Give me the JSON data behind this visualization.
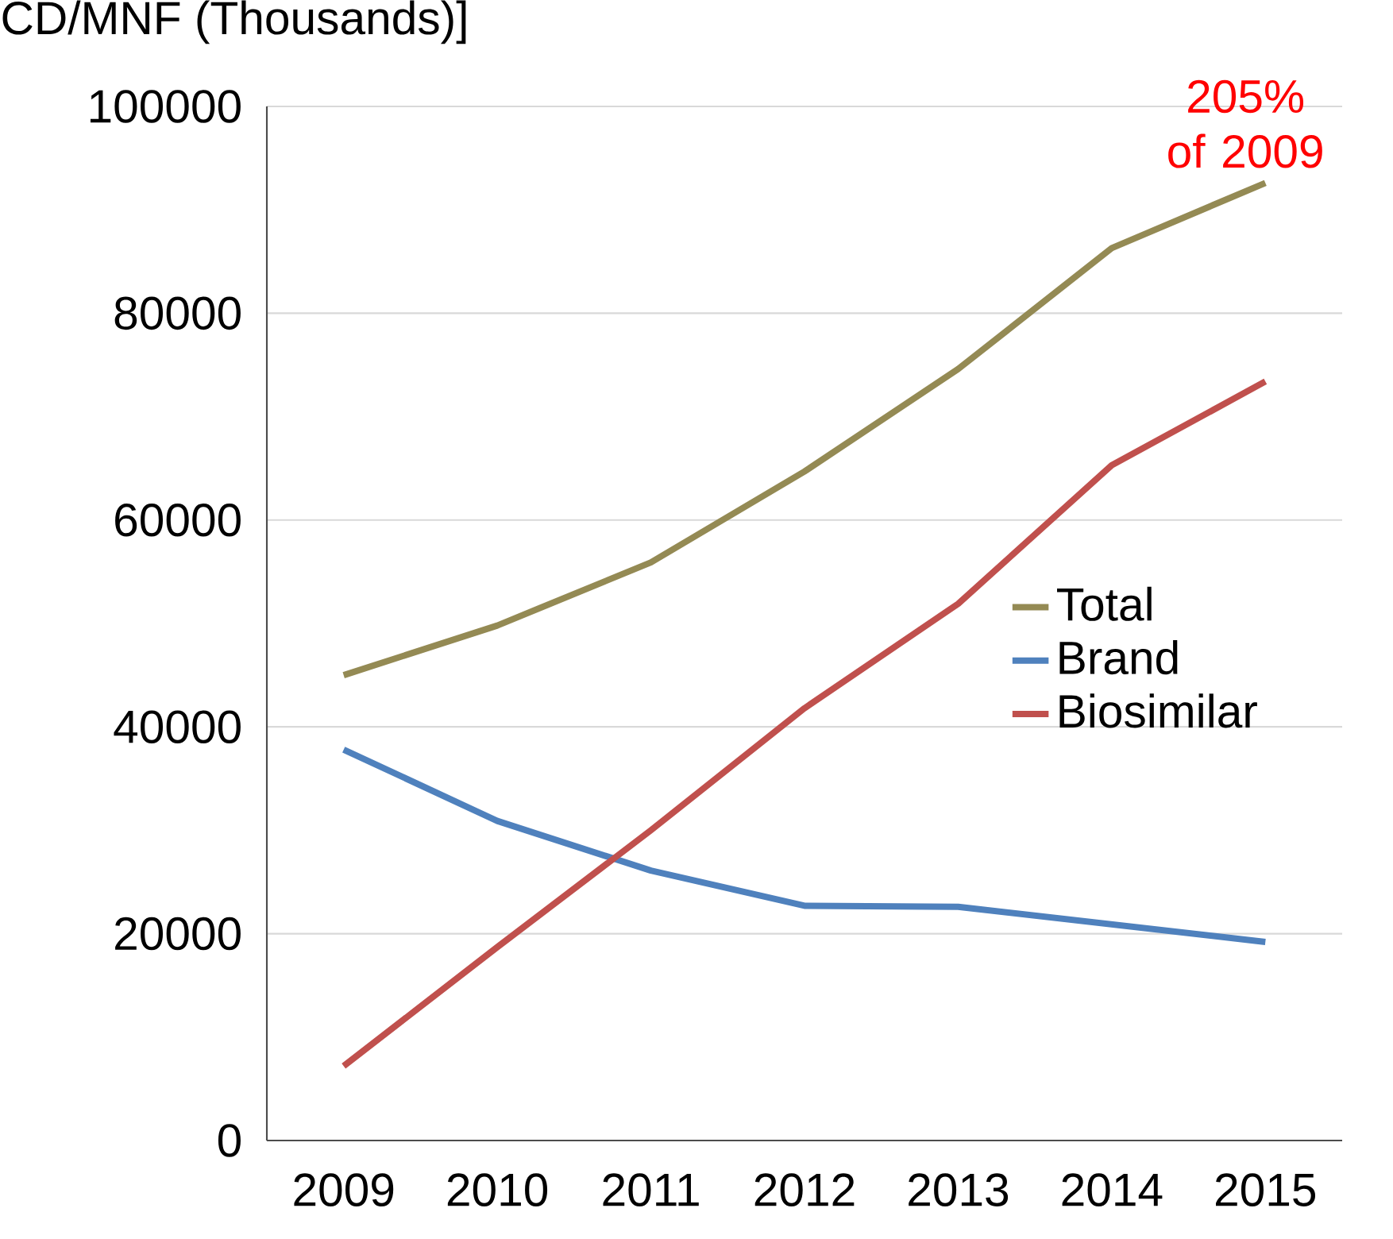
{
  "chart_data": {
    "type": "line",
    "ylabel": "CD/MNF (Thousands)]",
    "categories": [
      "2009",
      "2010",
      "2011",
      "2012",
      "2013",
      "2014",
      "2015"
    ],
    "series": [
      {
        "name": "Total",
        "color": "#948a54",
        "values": [
          45000,
          49800,
          55900,
          64700,
          74600,
          86300,
          92600
        ]
      },
      {
        "name": "Brand",
        "color": "#4f81bd",
        "values": [
          37800,
          30900,
          26100,
          22700,
          22600,
          20900,
          19200
        ]
      },
      {
        "name": "Biosimilar",
        "color": "#c0504d",
        "values": [
          7200,
          18700,
          30000,
          41800,
          51900,
          65300,
          73400
        ]
      }
    ],
    "ylim": [
      0,
      100000
    ],
    "yticks": [
      0,
      20000,
      40000,
      60000,
      80000,
      100000
    ],
    "grid": "y",
    "legend": "right",
    "annotations": [
      "205% of 2009"
    ]
  }
}
